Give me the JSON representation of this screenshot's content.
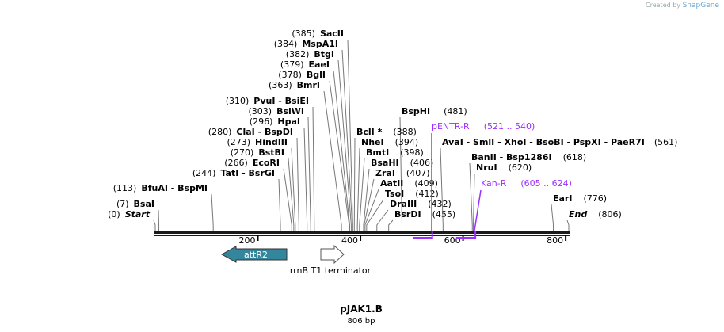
{
  "credit": {
    "prefix": "Created by",
    "brand": "SnapGene"
  },
  "sequence": {
    "name": "pJAK1.B",
    "length_label": "806 bp",
    "length": 806
  },
  "ruler": {
    "ticks": [
      200,
      400,
      600,
      800
    ]
  },
  "sites": [
    {
      "pos": "385",
      "label": "SacII"
    },
    {
      "pos": "384",
      "label": "MspA1I"
    },
    {
      "pos": "382",
      "label": "BtgI"
    },
    {
      "pos": "379",
      "label": "EaeI"
    },
    {
      "pos": "378",
      "label": "BglI"
    },
    {
      "pos": "363",
      "label": "BmrI"
    },
    {
      "pos": "310",
      "label": "PvuI  - BsiEI"
    },
    {
      "pos": "303",
      "label": "BsiWI"
    },
    {
      "pos": "296",
      "label": "HpaI"
    },
    {
      "pos": "280",
      "label": "ClaI  - BspDI"
    },
    {
      "pos": "273",
      "label": "HindIII"
    },
    {
      "pos": "270",
      "label": "BstBI"
    },
    {
      "pos": "266",
      "label": "EcoRI"
    },
    {
      "pos": "244",
      "label": "TatI  - BsrGI"
    },
    {
      "pos": "113",
      "label": "BfuAI  - BspMI"
    },
    {
      "pos": "7",
      "label": "BsaI"
    },
    {
      "pos": "0",
      "label": "Start"
    },
    {
      "pos": "481",
      "label": "BspHI"
    },
    {
      "pos": "388",
      "label": "BclI *"
    },
    {
      "pos": "394",
      "label": "NheI"
    },
    {
      "pos": "398",
      "label": "BmtI"
    },
    {
      "pos": "406",
      "label": "BsaHI"
    },
    {
      "pos": "407",
      "label": "ZraI"
    },
    {
      "pos": "409",
      "label": "AatII"
    },
    {
      "pos": "412",
      "label": "TsoI"
    },
    {
      "pos": "432",
      "label": "DraIII"
    },
    {
      "pos": "455",
      "label": "BsrDI"
    },
    {
      "pos": "561",
      "label": "AvaI  - SmlI  - XhoI  - BsoBI  - PspXI  - PaeR7I"
    },
    {
      "pos": "618",
      "label": "BanII  - Bsp1286I"
    },
    {
      "pos": "620",
      "label": "NruI"
    },
    {
      "pos": "776",
      "label": "EarI"
    },
    {
      "pos": "806",
      "label": "End"
    }
  ],
  "primers": [
    {
      "label": "pENTR-R",
      "range": "(521 .. 540)",
      "start": 521,
      "end": 540
    },
    {
      "label": "Kan-R",
      "range": "(605 .. 624)",
      "start": 605,
      "end": 624
    }
  ],
  "features": [
    {
      "label": "attR2",
      "start": 130,
      "end": 257,
      "direction": "reverse",
      "color": "#33869b"
    },
    {
      "label": "rrnB T1 terminator",
      "start": 323,
      "end": 367,
      "direction": "forward",
      "color": "#ffffff"
    }
  ],
  "colors": {
    "primer": "#9b30ff",
    "bar": "#1a1a1a"
  }
}
